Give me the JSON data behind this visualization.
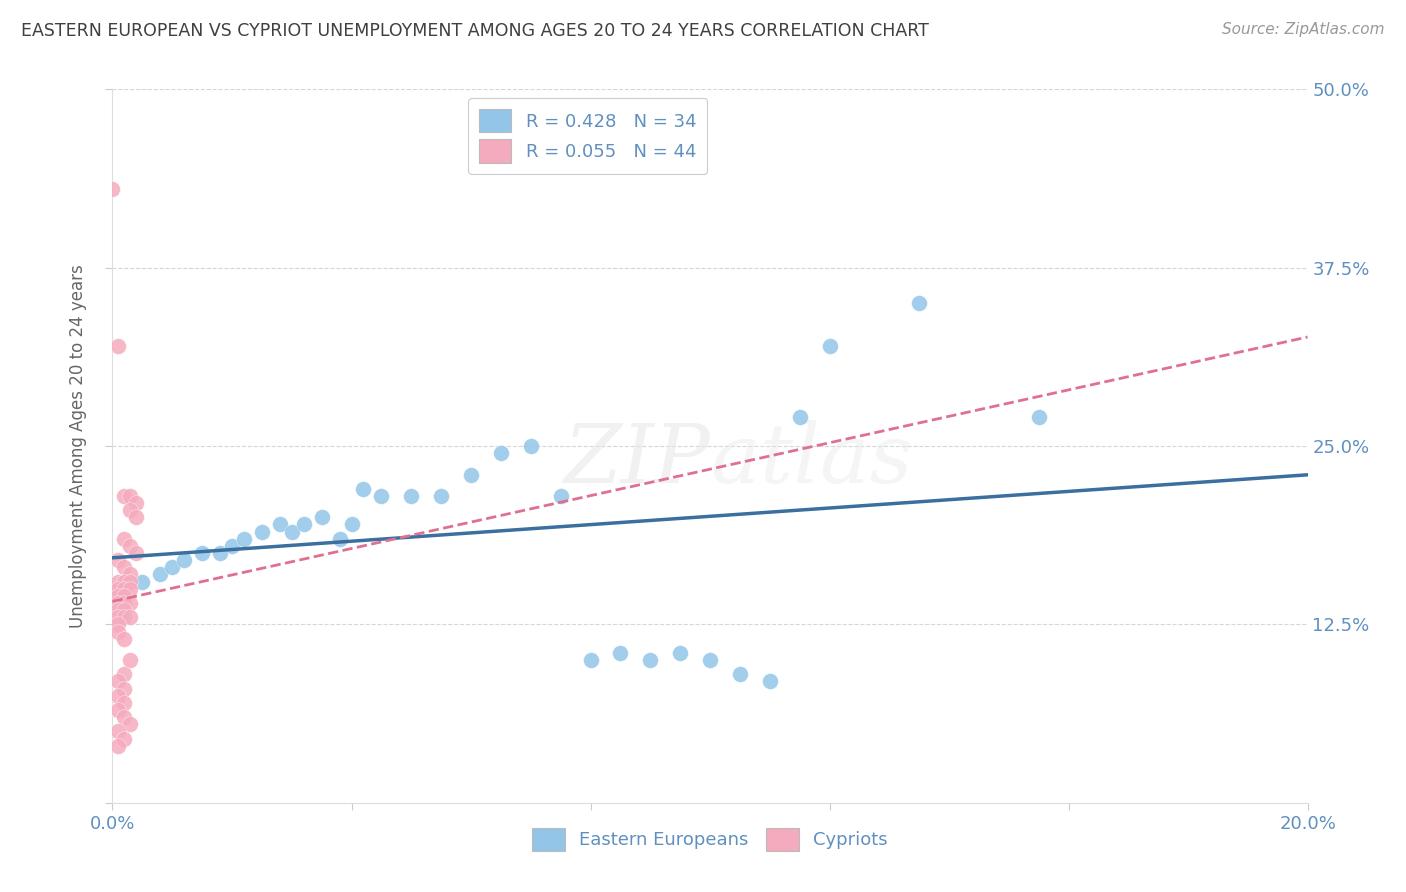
{
  "title": "EASTERN EUROPEAN VS CYPRIOT UNEMPLOYMENT AMONG AGES 20 TO 24 YEARS CORRELATION CHART",
  "source": "Source: ZipAtlas.com",
  "ylabel": "Unemployment Among Ages 20 to 24 years",
  "xlim": [
    0.0,
    0.2
  ],
  "ylim": [
    0.0,
    0.5
  ],
  "legend_blue_label": "Eastern Europeans",
  "legend_pink_label": "Cypriots",
  "R_blue": 0.428,
  "N_blue": 34,
  "R_pink": 0.055,
  "N_pink": 44,
  "blue_color": "#92C5E8",
  "pink_color": "#F5ABBE",
  "blue_line_color": "#3B6FA0",
  "pink_line_color": "#E07090",
  "background_color": "#FFFFFF",
  "grid_color": "#CCCCCC",
  "title_color": "#404040",
  "tick_label_color": "#6090C0",
  "ylabel_color": "#666666",
  "blue_scatter": [
    [
      0.005,
      0.155
    ],
    [
      0.008,
      0.16
    ],
    [
      0.01,
      0.165
    ],
    [
      0.012,
      0.17
    ],
    [
      0.015,
      0.175
    ],
    [
      0.018,
      0.175
    ],
    [
      0.02,
      0.18
    ],
    [
      0.022,
      0.185
    ],
    [
      0.025,
      0.19
    ],
    [
      0.028,
      0.195
    ],
    [
      0.03,
      0.19
    ],
    [
      0.032,
      0.195
    ],
    [
      0.035,
      0.2
    ],
    [
      0.038,
      0.185
    ],
    [
      0.04,
      0.195
    ],
    [
      0.042,
      0.22
    ],
    [
      0.045,
      0.215
    ],
    [
      0.05,
      0.215
    ],
    [
      0.055,
      0.215
    ],
    [
      0.06,
      0.23
    ],
    [
      0.065,
      0.245
    ],
    [
      0.07,
      0.25
    ],
    [
      0.075,
      0.215
    ],
    [
      0.08,
      0.1
    ],
    [
      0.085,
      0.105
    ],
    [
      0.09,
      0.1
    ],
    [
      0.095,
      0.105
    ],
    [
      0.1,
      0.1
    ],
    [
      0.105,
      0.09
    ],
    [
      0.11,
      0.085
    ],
    [
      0.115,
      0.27
    ],
    [
      0.12,
      0.32
    ],
    [
      0.135,
      0.35
    ],
    [
      0.155,
      0.27
    ]
  ],
  "pink_scatter": [
    [
      0.0,
      0.43
    ],
    [
      0.001,
      0.32
    ],
    [
      0.002,
      0.215
    ],
    [
      0.003,
      0.215
    ],
    [
      0.004,
      0.21
    ],
    [
      0.003,
      0.205
    ],
    [
      0.004,
      0.2
    ],
    [
      0.002,
      0.185
    ],
    [
      0.003,
      0.18
    ],
    [
      0.004,
      0.175
    ],
    [
      0.001,
      0.17
    ],
    [
      0.002,
      0.165
    ],
    [
      0.003,
      0.16
    ],
    [
      0.001,
      0.155
    ],
    [
      0.002,
      0.155
    ],
    [
      0.003,
      0.155
    ],
    [
      0.001,
      0.15
    ],
    [
      0.002,
      0.15
    ],
    [
      0.003,
      0.15
    ],
    [
      0.001,
      0.145
    ],
    [
      0.002,
      0.145
    ],
    [
      0.001,
      0.14
    ],
    [
      0.002,
      0.14
    ],
    [
      0.003,
      0.14
    ],
    [
      0.001,
      0.135
    ],
    [
      0.002,
      0.135
    ],
    [
      0.001,
      0.13
    ],
    [
      0.002,
      0.13
    ],
    [
      0.003,
      0.13
    ],
    [
      0.001,
      0.125
    ],
    [
      0.001,
      0.12
    ],
    [
      0.002,
      0.115
    ],
    [
      0.003,
      0.1
    ],
    [
      0.002,
      0.09
    ],
    [
      0.001,
      0.085
    ],
    [
      0.002,
      0.08
    ],
    [
      0.001,
      0.075
    ],
    [
      0.002,
      0.07
    ],
    [
      0.001,
      0.065
    ],
    [
      0.002,
      0.06
    ],
    [
      0.003,
      0.055
    ],
    [
      0.001,
      0.05
    ],
    [
      0.002,
      0.045
    ],
    [
      0.001,
      0.04
    ]
  ]
}
